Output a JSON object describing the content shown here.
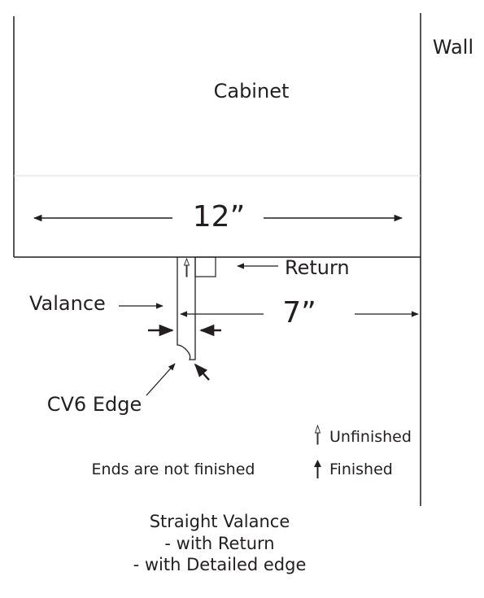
{
  "labels": {
    "cabinet": "Cabinet",
    "wall": "Wall",
    "width": "12”",
    "return": "Return",
    "valance": "Valance",
    "depth": "7”",
    "edge": "CV6 Edge",
    "ends_note": "Ends are not finished"
  },
  "legend": {
    "unfinished": "Unfinished",
    "finished": "Finished"
  },
  "caption": {
    "line1": "Straight Valance",
    "line2": "- with Return",
    "line3": "- with Detailed edge"
  }
}
